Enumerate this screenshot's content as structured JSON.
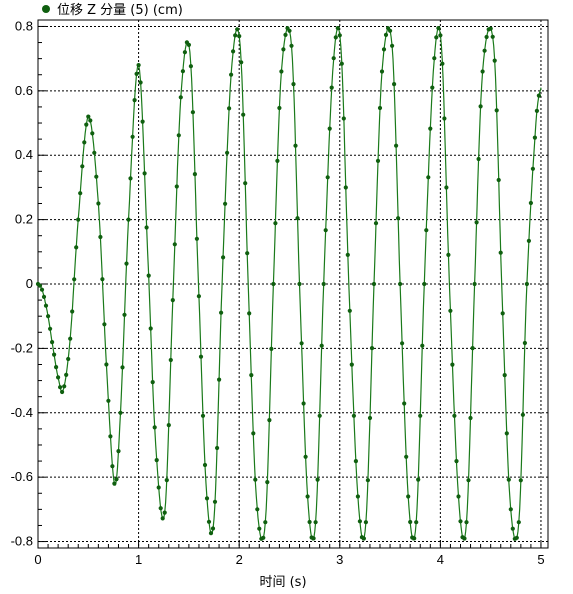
{
  "chart_data": {
    "type": "line",
    "title": "",
    "legend": {
      "placement": "top-left",
      "entries": [
        {
          "label": "位移 Z 分量 (5) (cm)",
          "marker": "filled-circle"
        }
      ]
    },
    "xlabel": "时间 (s)",
    "ylabel": "",
    "xlim": [
      0,
      5.07
    ],
    "ylim": [
      -0.82,
      0.82
    ],
    "x_ticks": [
      0,
      1,
      2,
      3,
      4,
      5
    ],
    "x_tick_labels": [
      "0",
      "1",
      "2",
      "3",
      "4",
      "5"
    ],
    "y_ticks": [
      0.8,
      0.6,
      0.4,
      0.2,
      0,
      -0.2,
      -0.4,
      -0.6,
      -0.8
    ],
    "y_tick_labels": [
      "0.8",
      "0.6",
      "0.4",
      "0.2",
      "0",
      "-0.2",
      "-0.4",
      "-0.6",
      "-0.8"
    ],
    "grid": true,
    "grid_style": "dashed",
    "series_color": "#1a7a1a",
    "marker_color": "#0f5f0f",
    "series": [
      {
        "x": [
          0,
          0.03,
          0.06,
          0.1,
          0.15,
          0.2,
          0.25,
          0.32,
          0.4,
          0.5,
          0.6,
          0.68,
          0.76,
          0.82,
          0.9,
          1.0,
          1.09,
          1.17,
          1.26,
          1.34,
          1.42,
          1.51,
          1.59,
          1.67,
          1.75,
          1.83,
          1.92,
          2.01,
          2.09,
          2.17,
          2.26,
          2.34,
          2.42,
          2.52,
          2.6,
          2.68,
          2.76,
          2.84,
          2.93,
          3.01,
          3.09,
          3.18,
          3.26,
          3.34,
          3.42,
          3.52,
          3.6,
          3.68,
          3.76,
          3.84,
          3.93,
          4.01,
          4.09,
          4.18,
          4.26,
          4.34,
          4.42,
          4.53,
          4.61,
          4.69,
          4.78,
          4.86,
          4.95,
          5.0
        ],
        "y": [
          0,
          -0.01,
          -0.04,
          -0.1,
          -0.2,
          -0.29,
          -0.33,
          -0.17,
          0.2,
          0.52,
          0.25,
          -0.25,
          -0.62,
          -0.4,
          0.2,
          0.68,
          0.1,
          -0.5,
          -0.71,
          -0.05,
          0.58,
          0.72,
          0.05,
          -0.62,
          -0.73,
          0.0,
          0.65,
          0.74,
          0.0,
          -0.66,
          -0.74,
          0.0,
          0.66,
          0.74,
          0.0,
          -0.66,
          -0.74,
          0.0,
          0.66,
          0.74,
          0.0,
          -0.66,
          -0.74,
          0.0,
          0.66,
          0.74,
          0.0,
          -0.66,
          -0.74,
          0.0,
          0.66,
          0.74,
          0.0,
          -0.66,
          -0.74,
          0.0,
          0.66,
          0.74,
          0.0,
          -0.66,
          -0.74,
          0.0,
          0.5,
          0.61
        ]
      }
    ]
  }
}
